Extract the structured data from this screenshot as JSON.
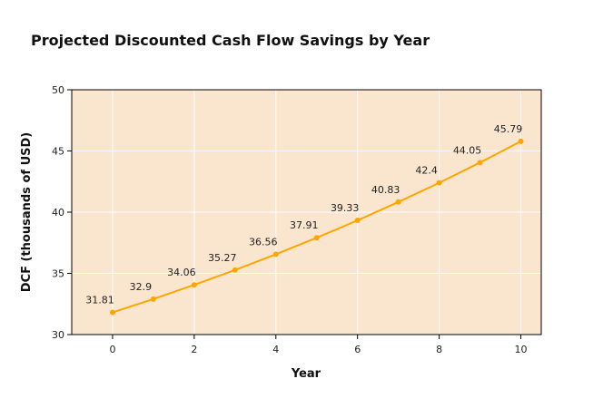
{
  "chart_data": {
    "type": "line",
    "title": "Projected Discounted Cash Flow Savings by Year",
    "xlabel": "Year",
    "ylabel": "DCF (thousands of USD)",
    "x": [
      0,
      1,
      2,
      3,
      4,
      5,
      6,
      7,
      8,
      9,
      10
    ],
    "values": [
      31.81,
      32.9,
      34.06,
      35.27,
      36.56,
      37.91,
      39.33,
      40.83,
      42.4,
      44.05,
      45.79
    ],
    "data_labels": [
      "31.81",
      "32.9",
      "34.06",
      "35.27",
      "36.56",
      "37.91",
      "39.33",
      "40.83",
      "42.4",
      "44.05",
      "45.79"
    ],
    "xlim": [
      -1,
      10.5
    ],
    "ylim": [
      30,
      50
    ],
    "x_ticks": [
      0,
      2,
      4,
      6,
      8,
      10
    ],
    "x_tick_labels": [
      "0",
      "2",
      "4",
      "6",
      "8",
      "10"
    ],
    "y_ticks": [
      30,
      35,
      40,
      45,
      50
    ],
    "y_tick_labels": [
      "30",
      "35",
      "40",
      "45",
      "50"
    ],
    "grid": true,
    "legend": "none",
    "colors": {
      "line": "#FFA500",
      "plot_background": "#FAE6CF",
      "grid": "#FFFFFF",
      "axis": "#000000"
    }
  }
}
